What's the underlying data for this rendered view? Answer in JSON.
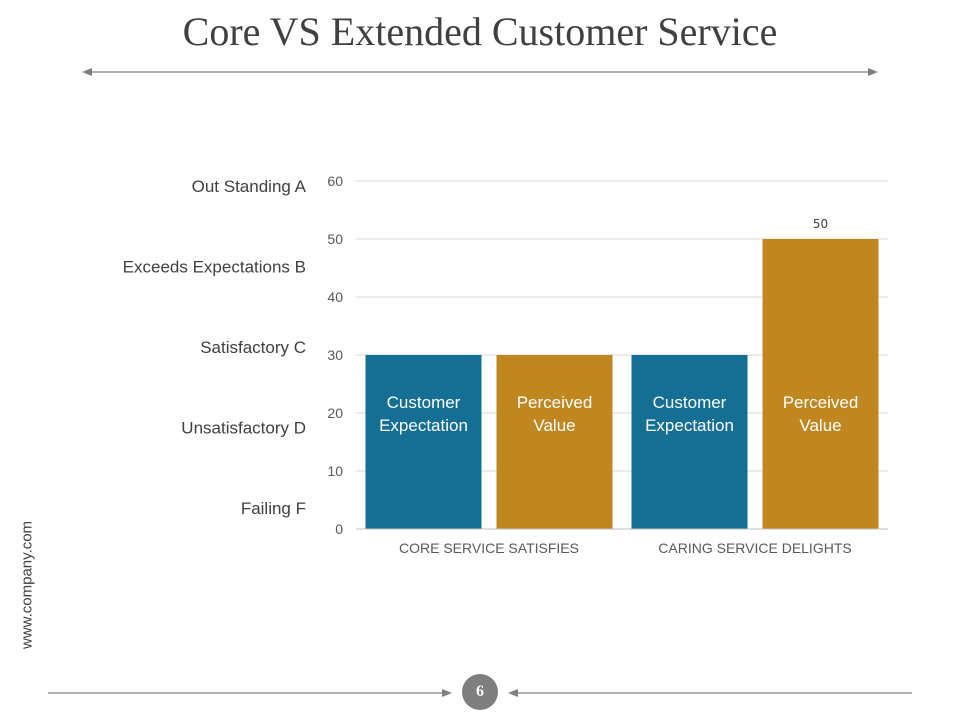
{
  "page": {
    "title": "Core VS Extended Customer Service",
    "website": "www.company.com",
    "page_number": "6"
  },
  "chart_data": {
    "type": "bar",
    "categories": [
      "CORE SERVICE SATISFIES",
      "CARING SERVICE DELIGHTS"
    ],
    "series": [
      {
        "name": "Customer Expectation",
        "values": [
          30,
          30
        ],
        "color": "#156f95"
      },
      {
        "name": "Perceived Value",
        "values": [
          30,
          50
        ],
        "color": "#c08720"
      }
    ],
    "bar_labels": [
      [
        "Customer",
        "Expectation"
      ],
      [
        "Perceived",
        "Value"
      ]
    ],
    "data_labels": [
      {
        "category_index": 1,
        "series_index": 1,
        "text": "50"
      }
    ],
    "ylim": [
      0,
      60
    ],
    "yticks": [
      0,
      10,
      20,
      30,
      40,
      50,
      60
    ],
    "grid": true,
    "rating_labels": [
      "Out Standing A",
      "Exceeds Expectations B",
      "Satisfactory C",
      "Unsatisfactory D",
      "Failing F"
    ]
  }
}
